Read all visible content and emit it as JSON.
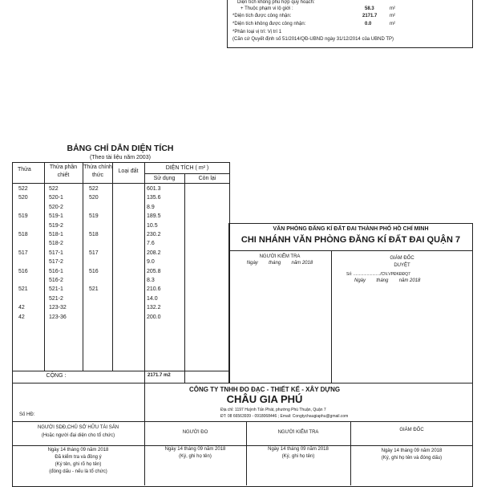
{
  "top_info": {
    "line0": "Diện tích không phù hợp quy hoạch:",
    "line1_label": "+ Thuộc phạm vi lộ giới :",
    "line1_value": "58.3",
    "line1_unit": "m²",
    "line2_label": "*Diện tích được công nhận:",
    "line2_value": "2171.7",
    "line2_unit": "m²",
    "line3_label": "*Diện tích không được công nhận:",
    "line3_value": "0.0",
    "line3_unit": "m²",
    "line4": "*Phân loại vị trí: Vị trí 1",
    "line5": "(Căn cứ Quyết định số 51/2014/QĐ-UBND ngày 31/12/2014 của UBND TP)"
  },
  "area_table": {
    "title": "BẢNG CHỈ DẪN DIỆN TÍCH",
    "subtitle": "(Theo tài liệu  năm 2003)",
    "headers": {
      "thua": "Thửa",
      "phan_chiet": "Thửa phần chiết",
      "chinh_thuc": "Thửa chính thức",
      "loai_dat": "Loại đất",
      "dien_tich": "DIỆN TÍCH ( m² )",
      "su_dung": "Sử dụng",
      "con_lai": "Còn lại"
    },
    "rows": [
      [
        "522",
        "522",
        "522",
        "601.3"
      ],
      [
        "520",
        "520-1",
        "520",
        "135.6"
      ],
      [
        "",
        "520-2",
        "",
        "8.9"
      ],
      [
        "519",
        "519-1",
        "519",
        "189.5"
      ],
      [
        "",
        "519-2",
        "",
        "10.5"
      ],
      [
        "518",
        "518-1",
        "518",
        "230.2"
      ],
      [
        "",
        "518-2",
        "",
        "7.6"
      ],
      [
        "517",
        "517-1",
        "517",
        "208.2"
      ],
      [
        "",
        "517-2",
        "",
        "9.0"
      ],
      [
        "516",
        "516-1",
        "516",
        "205.8"
      ],
      [
        "",
        "516-2",
        "",
        "8.3"
      ],
      [
        "521",
        "521-1",
        "521",
        "210.6"
      ],
      [
        "",
        "521-2",
        "",
        "14.0"
      ],
      [
        "42",
        "123-32",
        "",
        "132.2"
      ],
      [
        "42",
        "123-36",
        "",
        "200.0"
      ]
    ],
    "total_label": "CỘNG :",
    "total_value": "2171.7 m2"
  },
  "office": {
    "line1": "VĂN PHÒNG ĐĂNG KÍ ĐẤT ĐAI THÀNH PHỐ HỒ CHÍ MINH",
    "line2": "CHI NHÁNH VĂN PHÒNG ĐĂNG KÍ ĐẤT ĐAI QUẬN 7",
    "checker": "NGƯỜI KIỂM TRA",
    "checker_date": "Ngày        tháng        năm 2018",
    "director": "GIÁM ĐỐC",
    "approve": "DUYỆT",
    "number": "Số: ......................../CN.VPĐKĐĐQ7",
    "director_date": "Ngày        tháng        năm 2018"
  },
  "company": {
    "line1": "CÔNG TY TNHH ĐO ĐẠC - THIẾT KẾ - XÂY DỰNG",
    "name": "CHÂU GIA PHÚ",
    "address": "Địa chỉ: 1197 Huỳnh Tấn Phát, phường Phú Thuận, Quận 7",
    "contact": "ĐT: 08 66563939 - 0918068446 ; Email: Congtychaugiaphu@gmail.com",
    "contract_no": "Số HĐ:"
  },
  "signatures": [
    {
      "title": "NGƯỜI SDĐ,CHỦ SỞ HỮU TÀI SẢN",
      "sub": "(Hoặc người đại diện cho tổ chức)",
      "date": "Ngày 14 tháng 09 năm 2018",
      "note": "Đã kiểm tra và đồng ý",
      "note2": "(Ký tên, ghi rõ họ tên)",
      "note3": "(đóng dấu - nếu là tổ chức)"
    },
    {
      "title": "NGƯỜI ĐO",
      "date": "Ngày 14 tháng 09 năm 2018",
      "note": "(Ký, ghi họ tên)"
    },
    {
      "title": "NGƯỜI KIỂM TRA",
      "date": "Ngày 14 tháng 09 năm 2018",
      "note": "(Ký, ghi họ tên)"
    },
    {
      "title": "GIÁM ĐỐC",
      "date": "Ngày 14 tháng 09 năm 2018",
      "note": "(Ký, ghi họ tên và đóng dấu)"
    }
  ]
}
